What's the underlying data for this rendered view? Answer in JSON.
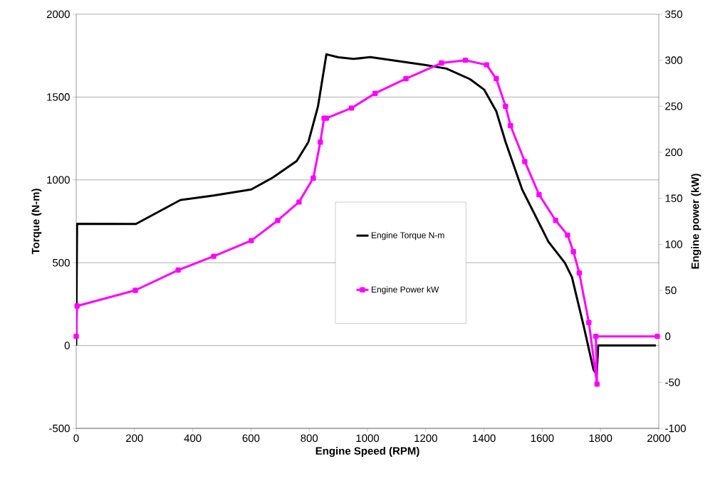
{
  "chart_data": {
    "type": "line",
    "xlabel": "Engine Speed (RPM)",
    "ylabel": "Torque (N-m)",
    "y2label": "Engine power (kW)",
    "xlim": [
      0,
      2000
    ],
    "xticks": [
      0,
      200,
      400,
      600,
      800,
      1000,
      1200,
      1400,
      1600,
      1800,
      2000
    ],
    "ylim": [
      -500,
      2000
    ],
    "yticks": [
      -500,
      0,
      500,
      1000,
      1500,
      2000
    ],
    "y2lim": [
      -100,
      350
    ],
    "y2ticks": [
      -100,
      -50,
      0,
      50,
      100,
      150,
      200,
      250,
      300,
      350
    ],
    "grid": "y",
    "legend": "center",
    "series": [
      {
        "name": "Engine Torque N-m",
        "color": "#000000",
        "x": [
          0,
          3,
          205,
          357,
          472,
          601,
          675,
          757,
          797,
          830,
          859,
          900,
          952,
          1010,
          1197,
          1271,
          1352,
          1401,
          1442,
          1474,
          1491,
          1531,
          1572,
          1621,
          1678,
          1702,
          1743,
          1776,
          1787,
          1792,
          1990
        ],
        "values": [
          0,
          735,
          734,
          878,
          906,
          942,
          1014,
          1114,
          1228,
          1443,
          1758,
          1740,
          1730,
          1741,
          1694,
          1672,
          1608,
          1544,
          1415,
          1229,
          1143,
          942,
          799,
          627,
          498,
          412,
          112,
          -146,
          -175,
          0,
          0
        ]
      },
      {
        "name": "Engine Power kW",
        "color": "#ff00ff",
        "axis": "y2",
        "marker": "square",
        "x": [
          0,
          3,
          203,
          350,
          472,
          601,
          692,
          765,
          814,
          838,
          851,
          859,
          945,
          1026,
          1132,
          1254,
          1336,
          1409,
          1442,
          1474,
          1491,
          1540,
          1589,
          1646,
          1687,
          1707,
          1727,
          1760,
          1788,
          1784,
          1995
        ],
        "values": [
          0,
          33,
          50,
          72,
          87,
          104,
          126,
          146,
          172,
          211,
          237,
          237,
          248,
          264,
          280,
          297,
          300,
          295,
          280,
          250,
          229,
          190,
          154,
          126,
          110,
          92,
          69,
          15,
          -52,
          0,
          0
        ]
      }
    ]
  }
}
